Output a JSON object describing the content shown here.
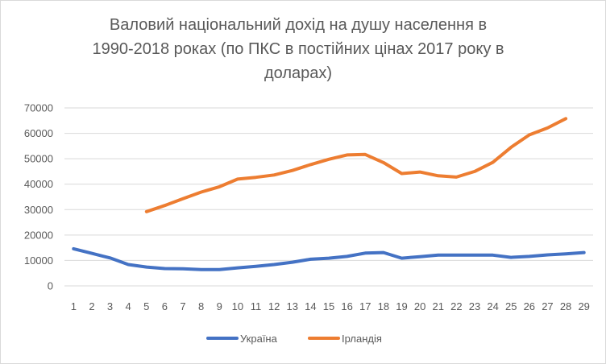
{
  "chart_data": {
    "type": "line",
    "title": "Валовий національний дохід на душу населення  в 1990-2018 роках (по ПКС в постійних цінах 2017 року в доларах)",
    "title_lines": [
      "Валовий національний дохід на душу населення  в",
      "1990-2018 роках (по ПКС в постійних цінах 2017 року в",
      "доларах)"
    ],
    "xlabel": "",
    "ylabel": "",
    "x": [
      1,
      2,
      3,
      4,
      5,
      6,
      7,
      8,
      9,
      10,
      11,
      12,
      13,
      14,
      15,
      16,
      17,
      18,
      19,
      20,
      21,
      22,
      23,
      24,
      25,
      26,
      27,
      28,
      29
    ],
    "ylim": [
      0,
      70000
    ],
    "yticks": [
      0,
      10000,
      20000,
      30000,
      40000,
      50000,
      60000,
      70000
    ],
    "grid": true,
    "legend_position": "bottom",
    "series": [
      {
        "name": "Україна",
        "color": "#4472C4",
        "values": [
          14600,
          12800,
          11000,
          8400,
          7400,
          6800,
          6700,
          6400,
          6400,
          7100,
          7700,
          8400,
          9300,
          10500,
          10900,
          11600,
          12900,
          13100,
          10900,
          11500,
          12100,
          12100,
          12100,
          12100,
          11200,
          11600,
          12200,
          12600,
          13100
        ]
      },
      {
        "name": "Ірландія",
        "color": "#ED7D31",
        "values": [
          null,
          null,
          null,
          null,
          29200,
          31600,
          34300,
          36900,
          39000,
          42000,
          42700,
          43600,
          45400,
          47700,
          49800,
          51500,
          51700,
          48500,
          44200,
          44800,
          43300,
          42800,
          45000,
          48600,
          54500,
          59400,
          62100,
          65800,
          null
        ]
      }
    ]
  }
}
